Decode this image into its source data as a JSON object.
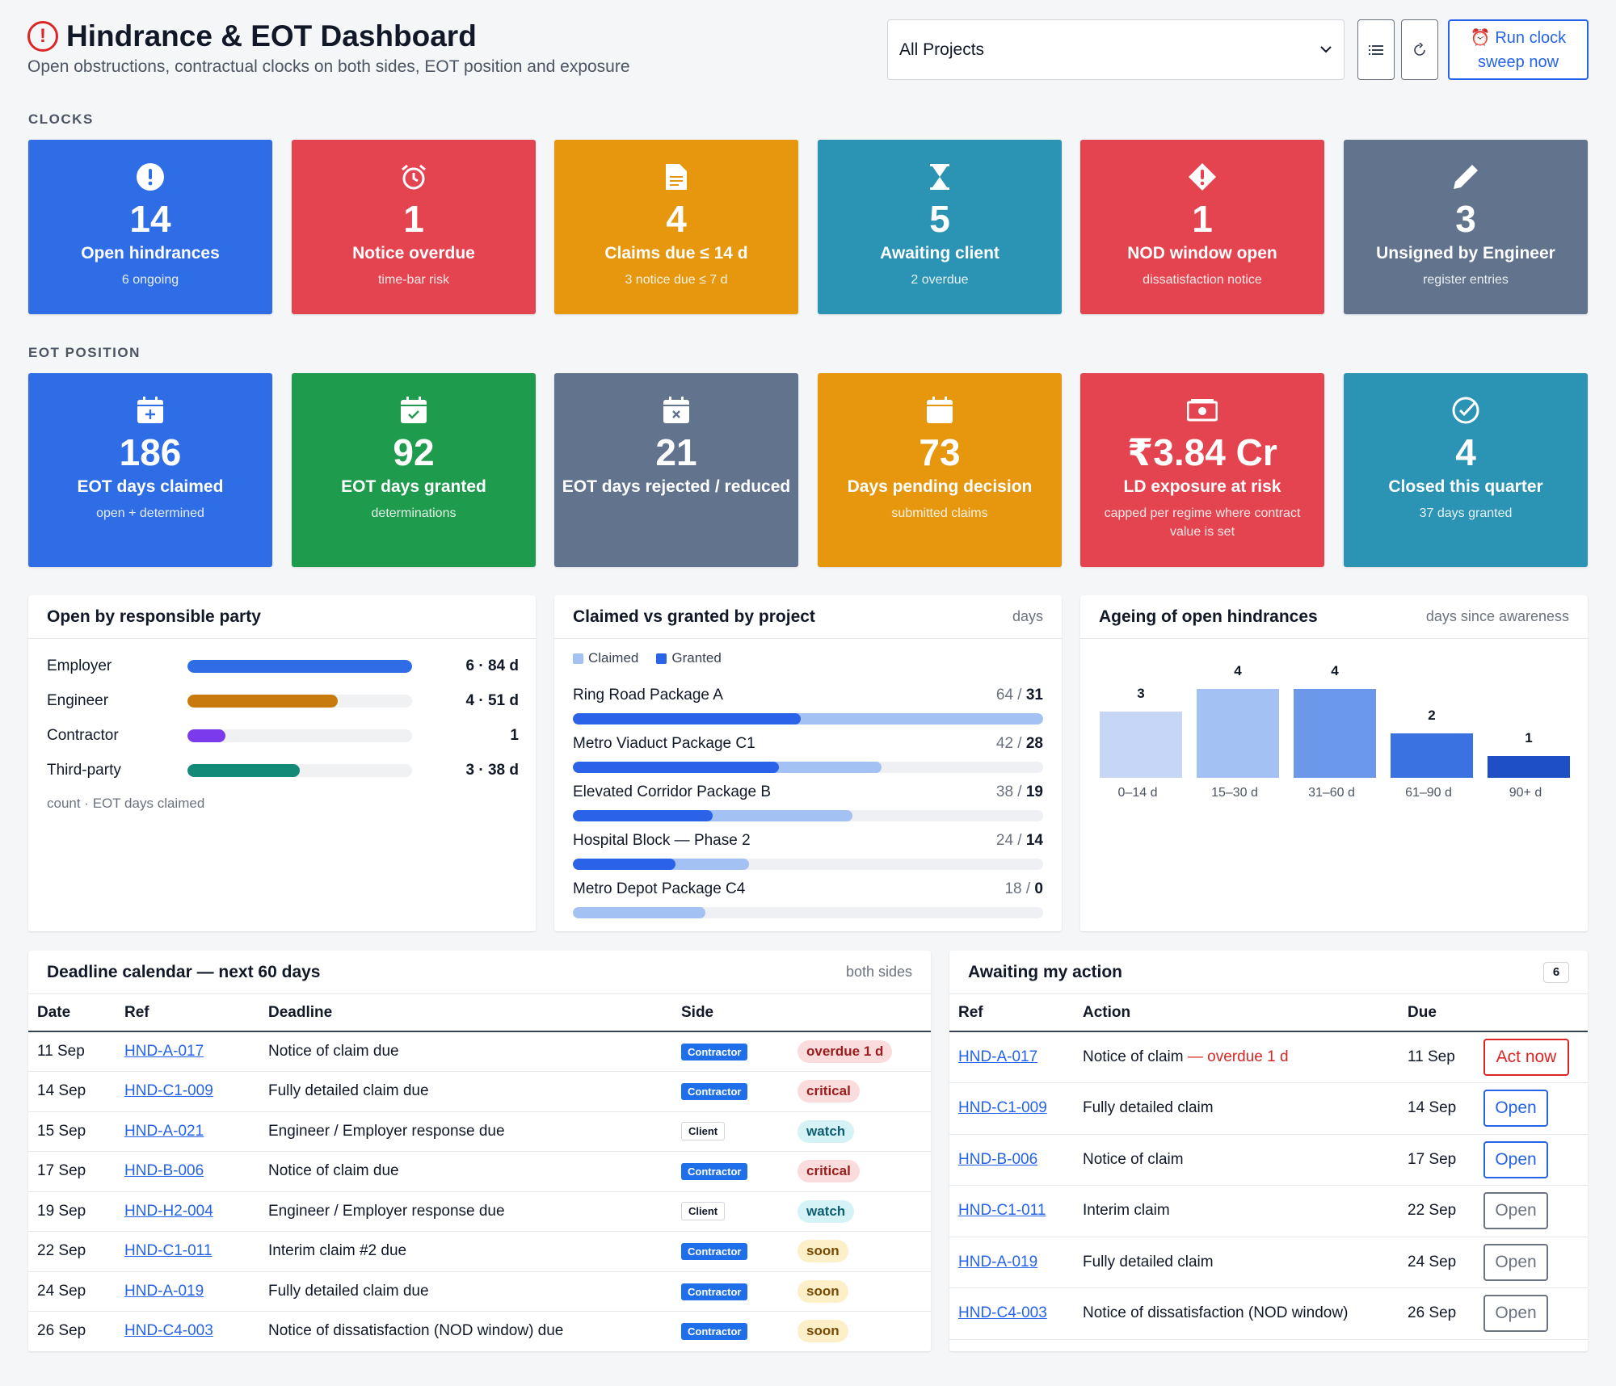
{
  "header": {
    "title": "Hindrance & EOT Dashboard",
    "subtitle": "Open obstructions, contractual clocks on both sides, EOT position and exposure",
    "project_filter": "All Projects",
    "sweep_line1": "Run clock",
    "sweep_line2": "sweep now"
  },
  "sections": {
    "clocks": "CLOCKS",
    "eot": "EOT POSITION"
  },
  "clock_tiles": [
    {
      "icon": "exclamation-circle-icon",
      "value": "14",
      "label": "Open hindrances",
      "sub": "6 ongoing",
      "color": "#2f6de6"
    },
    {
      "icon": "alarm-clock-icon",
      "value": "1",
      "label": "Notice overdue",
      "sub": "time-bar risk",
      "color": "#e4444f"
    },
    {
      "icon": "document-icon",
      "value": "4",
      "label": "Claims due ≤ 14 d",
      "sub": "3 notice due ≤ 7 d",
      "color": "#e6970e"
    },
    {
      "icon": "hourglass-icon",
      "value": "5",
      "label": "Awaiting client",
      "sub": "2 overdue",
      "color": "#2b93b3"
    },
    {
      "icon": "exclamation-diamond-icon",
      "value": "1",
      "label": "NOD window open",
      "sub": "dissatisfaction notice",
      "color": "#e4444f"
    },
    {
      "icon": "pen-icon",
      "value": "3",
      "label": "Unsigned by Engineer",
      "sub": "register entries",
      "color": "#61738d"
    }
  ],
  "eot_tiles": [
    {
      "icon": "calendar-plus-icon",
      "value": "186",
      "label": "EOT days claimed",
      "sub": "open + determined",
      "color": "#2f6de6"
    },
    {
      "icon": "calendar-check-icon",
      "value": "92",
      "label": "EOT days granted",
      "sub": "determinations",
      "color": "#1e9b4d"
    },
    {
      "icon": "calendar-x-icon",
      "value": "21",
      "label": "EOT days rejected / reduced",
      "sub": "",
      "color": "#61738d"
    },
    {
      "icon": "calendar-icon",
      "value": "73",
      "label": "Days pending decision",
      "sub": "submitted claims",
      "color": "#e6970e"
    },
    {
      "icon": "cash-icon",
      "value": "₹3.84 Cr",
      "label": "LD exposure at risk",
      "sub": "capped per regime where contract value is set",
      "color": "#e4444f"
    },
    {
      "icon": "check-circle-icon",
      "value": "4",
      "label": "Closed this quarter",
      "sub": "37 days granted",
      "color": "#2b93b3"
    }
  ],
  "party_panel": {
    "title": "Open by responsible party",
    "rows": [
      {
        "name": "Employer",
        "value": "6 · 84 d",
        "fill": 1.0,
        "color": "#2f6de6"
      },
      {
        "name": "Engineer",
        "value": "4 · 51 d",
        "fill": 0.67,
        "color": "#c97a0c"
      },
      {
        "name": "Contractor",
        "value": "1",
        "fill": 0.17,
        "color": "#7c3aed"
      },
      {
        "name": "Third-party",
        "value": "3 · 38 d",
        "fill": 0.5,
        "color": "#138a78"
      }
    ],
    "footnote": "count · EOT days claimed"
  },
  "project_panel": {
    "title": "Claimed vs granted by project",
    "unit": "days",
    "legend_claimed": "Claimed",
    "legend_granted": "Granted",
    "max": 64,
    "rows": [
      {
        "name": "Ring Road Package A",
        "claimed": 64,
        "granted": 31
      },
      {
        "name": "Metro Viaduct Package C1",
        "claimed": 42,
        "granted": 28
      },
      {
        "name": "Elevated Corridor Package B",
        "claimed": 38,
        "granted": 19
      },
      {
        "name": "Hospital Block — Phase 2",
        "claimed": 24,
        "granted": 14
      },
      {
        "name": "Metro Depot Package C4",
        "claimed": 18,
        "granted": 0
      }
    ]
  },
  "chart_data": {
    "type": "bar",
    "title": "Ageing of open hindrances",
    "subtitle": "days since awareness",
    "categories": [
      "0–14 d",
      "15–30 d",
      "31–60 d",
      "61–90 d",
      "90+ d"
    ],
    "values": [
      3,
      4,
      4,
      2,
      1
    ],
    "colors": [
      "#c5d6f6",
      "#a4c1f4",
      "#6c98ec",
      "#3b72e2",
      "#1f4fc4"
    ],
    "ylim": [
      0,
      4
    ]
  },
  "calendar": {
    "title": "Deadline calendar — next 60 days",
    "note": "both sides",
    "columns": [
      "Date",
      "Ref",
      "Deadline",
      "Side",
      ""
    ],
    "rows": [
      {
        "date": "11 Sep",
        "ref": "HND-A-017",
        "deadline": "Notice of claim due",
        "side": "Contractor",
        "status": "overdue 1 d",
        "status_type": "overdue"
      },
      {
        "date": "14 Sep",
        "ref": "HND-C1-009",
        "deadline": "Fully detailed claim due",
        "side": "Contractor",
        "status": "critical",
        "status_type": "critical"
      },
      {
        "date": "15 Sep",
        "ref": "HND-A-021",
        "deadline": "Engineer / Employer response due",
        "side": "Client",
        "status": "watch",
        "status_type": "watch"
      },
      {
        "date": "17 Sep",
        "ref": "HND-B-006",
        "deadline": "Notice of claim due",
        "side": "Contractor",
        "status": "critical",
        "status_type": "critical"
      },
      {
        "date": "19 Sep",
        "ref": "HND-H2-004",
        "deadline": "Engineer / Employer response due",
        "side": "Client",
        "status": "watch",
        "status_type": "watch"
      },
      {
        "date": "22 Sep",
        "ref": "HND-C1-011",
        "deadline": "Interim claim #2 due",
        "side": "Contractor",
        "status": "soon",
        "status_type": "soon"
      },
      {
        "date": "24 Sep",
        "ref": "HND-A-019",
        "deadline": "Fully detailed claim due",
        "side": "Contractor",
        "status": "soon",
        "status_type": "soon"
      },
      {
        "date": "26 Sep",
        "ref": "HND-C4-003",
        "deadline": "Notice of dissatisfaction (NOD window) due",
        "side": "Contractor",
        "status": "soon",
        "status_type": "soon"
      }
    ]
  },
  "awaiting": {
    "title": "Awaiting my action",
    "count": "6",
    "columns": [
      "Ref",
      "Action",
      "Due",
      ""
    ],
    "rows": [
      {
        "ref": "HND-A-017",
        "action": "Notice of claim",
        "overdue": " — overdue 1 d",
        "due": "11 Sep",
        "button": "Act now",
        "btn_type": "danger"
      },
      {
        "ref": "HND-C1-009",
        "action": "Fully detailed claim",
        "overdue": "",
        "due": "14 Sep",
        "button": "Open",
        "btn_type": "primary"
      },
      {
        "ref": "HND-B-006",
        "action": "Notice of claim",
        "overdue": "",
        "due": "17 Sep",
        "button": "Open",
        "btn_type": "primary"
      },
      {
        "ref": "HND-C1-011",
        "action": "Interim claim",
        "overdue": "",
        "due": "22 Sep",
        "button": "Open",
        "btn_type": "secondary"
      },
      {
        "ref": "HND-A-019",
        "action": "Fully detailed claim",
        "overdue": "",
        "due": "24 Sep",
        "button": "Open",
        "btn_type": "secondary"
      },
      {
        "ref": "HND-C4-003",
        "action": "Notice of dissatisfaction (NOD window)",
        "overdue": "",
        "due": "26 Sep",
        "button": "Open",
        "btn_type": "secondary"
      }
    ]
  }
}
